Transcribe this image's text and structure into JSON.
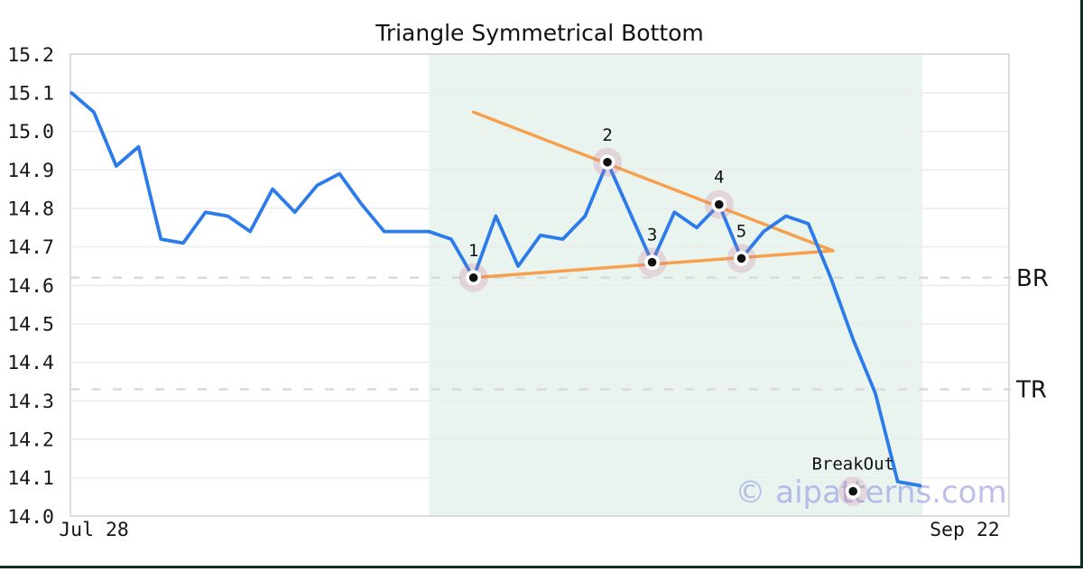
{
  "title": "Triangle Symmetrical Bottom",
  "watermark": "© aipatterns.com",
  "colors": {
    "price_line": "#2c7beb",
    "trendline": "#f6a04e",
    "marker_halo": "rgba(205,120,150,0.25)",
    "marker_ring": "#ffffff",
    "marker_dot": "#111111",
    "region_fill": "#e9f4ef",
    "gridline": "#ececec",
    "plot_border": "#dcdcdc",
    "level_dash": "#d9d9d9",
    "text": "#111111",
    "watermark_color": "#8f94e3",
    "edge_bar": "#0f2d29"
  },
  "axis": {
    "ylim": [
      14.0,
      15.2
    ],
    "y_tick_labels": [
      "15.2",
      "15.1",
      "15.0",
      "14.9",
      "14.8",
      "14.7",
      "14.6",
      "14.5",
      "14.4",
      "14.3",
      "14.2",
      "14.1",
      "14.0"
    ],
    "x_ticks": [
      {
        "label": "Jul 28",
        "index": 1
      },
      {
        "label": "Sep 22",
        "index": 40
      }
    ]
  },
  "chart_data": {
    "type": "line",
    "title": "Triangle Symmetrical Bottom",
    "x_unit": "trading-day index (Jul 28 = index 1, Sep 22 = index 40)",
    "ylim": [
      14.0,
      15.2
    ],
    "grid": "horizontal",
    "legend": "none",
    "series": [
      {
        "name": "price",
        "values": [
          15.1,
          15.05,
          14.91,
          14.96,
          14.72,
          14.71,
          14.79,
          14.78,
          14.74,
          14.85,
          14.79,
          14.86,
          14.89,
          14.81,
          14.74,
          14.74,
          14.74,
          14.72,
          14.62,
          14.78,
          14.65,
          14.73,
          14.72,
          14.78,
          14.92,
          14.79,
          14.66,
          14.79,
          14.75,
          14.81,
          14.67,
          14.74,
          14.78,
          14.76,
          14.62,
          14.46,
          14.32,
          14.09,
          14.08
        ]
      }
    ],
    "pattern_points": [
      {
        "label": "1",
        "index": 18,
        "value": 14.62
      },
      {
        "label": "2",
        "index": 24,
        "value": 14.92
      },
      {
        "label": "3",
        "index": 26,
        "value": 14.66
      },
      {
        "label": "4",
        "index": 29,
        "value": 14.81
      },
      {
        "label": "5",
        "index": 30,
        "value": 14.67
      }
    ],
    "breakout_marker": {
      "label": "BreakOut",
      "index": 35,
      "value": 14.065
    },
    "trendlines": [
      {
        "name": "upper",
        "from_index": 18,
        "from_value": 15.05,
        "to_index": 34.1,
        "to_value": 14.69
      },
      {
        "name": "lower",
        "from_index": 18,
        "from_value": 14.62,
        "to_index": 34.1,
        "to_value": 14.69
      }
    ],
    "levels": [
      {
        "label": "BR",
        "value": 14.62
      },
      {
        "label": "TR",
        "value": 14.33
      }
    ],
    "highlight_region": {
      "from_index": 16.0,
      "to_index": 38.1
    }
  }
}
